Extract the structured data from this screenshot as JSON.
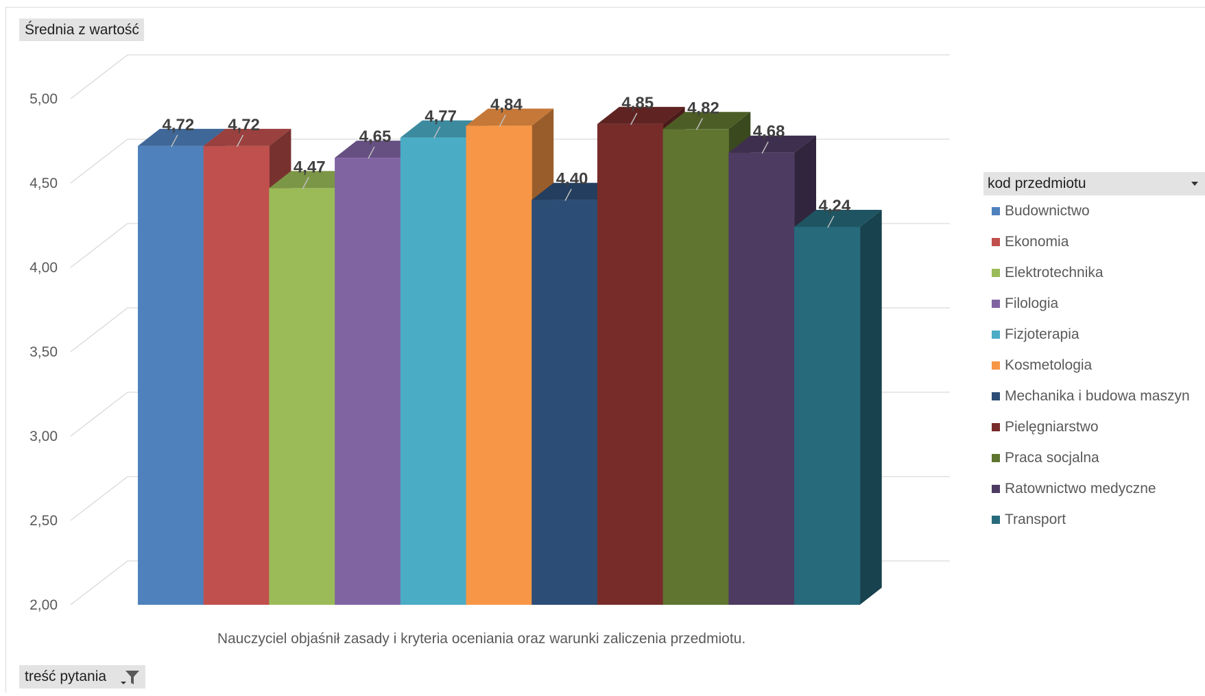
{
  "values_field": {
    "label": "Średnia z wartość"
  },
  "filter_field": {
    "label": "treść pytania",
    "icon": "filter-icon"
  },
  "legend": {
    "title": "kod przedmiotu",
    "dropdown_icon": "dropdown-arrow-icon"
  },
  "chart_data": {
    "type": "bar",
    "style": "3d-clustered-column",
    "categories": [
      "Nauczyciel objaśnił zasady i kryteria oceniania oraz warunki zaliczenia przedmiotu."
    ],
    "ylim": [
      2.0,
      5.0
    ],
    "y_ticks": [
      "2,00",
      "2,50",
      "3,00",
      "3,50",
      "4,00",
      "4,50",
      "5,00"
    ],
    "y_tick_values": [
      2.0,
      2.5,
      3.0,
      3.5,
      4.0,
      4.5,
      5.0
    ],
    "grid": true,
    "legend_position": "right",
    "series": [
      {
        "name": "Budownictwo",
        "value": 4.72,
        "label": "4,72",
        "color": "#4f81bd"
      },
      {
        "name": "Ekonomia",
        "value": 4.72,
        "label": "4,72",
        "color": "#c0504d"
      },
      {
        "name": "Elektrotechnika",
        "value": 4.47,
        "label": "4,47",
        "color": "#9bbb59"
      },
      {
        "name": "Filologia",
        "value": 4.65,
        "label": "4,65",
        "color": "#8064a2"
      },
      {
        "name": "Fizjoterapia",
        "value": 4.77,
        "label": "4,77",
        "color": "#4bacc6"
      },
      {
        "name": "Kosmetologia",
        "value": 4.84,
        "label": "4,84",
        "color": "#f79646"
      },
      {
        "name": "Mechanika i budowa maszyn",
        "value": 4.4,
        "label": "4,40",
        "color": "#2c4d75"
      },
      {
        "name": "Pielęgniarstwo",
        "value": 4.85,
        "label": "4,85",
        "color": "#772c2a"
      },
      {
        "name": "Praca socjalna",
        "value": 4.82,
        "label": "4,82",
        "color": "#5f7530"
      },
      {
        "name": "Ratownictwo medyczne",
        "value": 4.68,
        "label": "4,68",
        "color": "#4d3b62"
      },
      {
        "name": "Transport",
        "value": 4.24,
        "label": "4,24",
        "color": "#276a7c"
      }
    ]
  }
}
